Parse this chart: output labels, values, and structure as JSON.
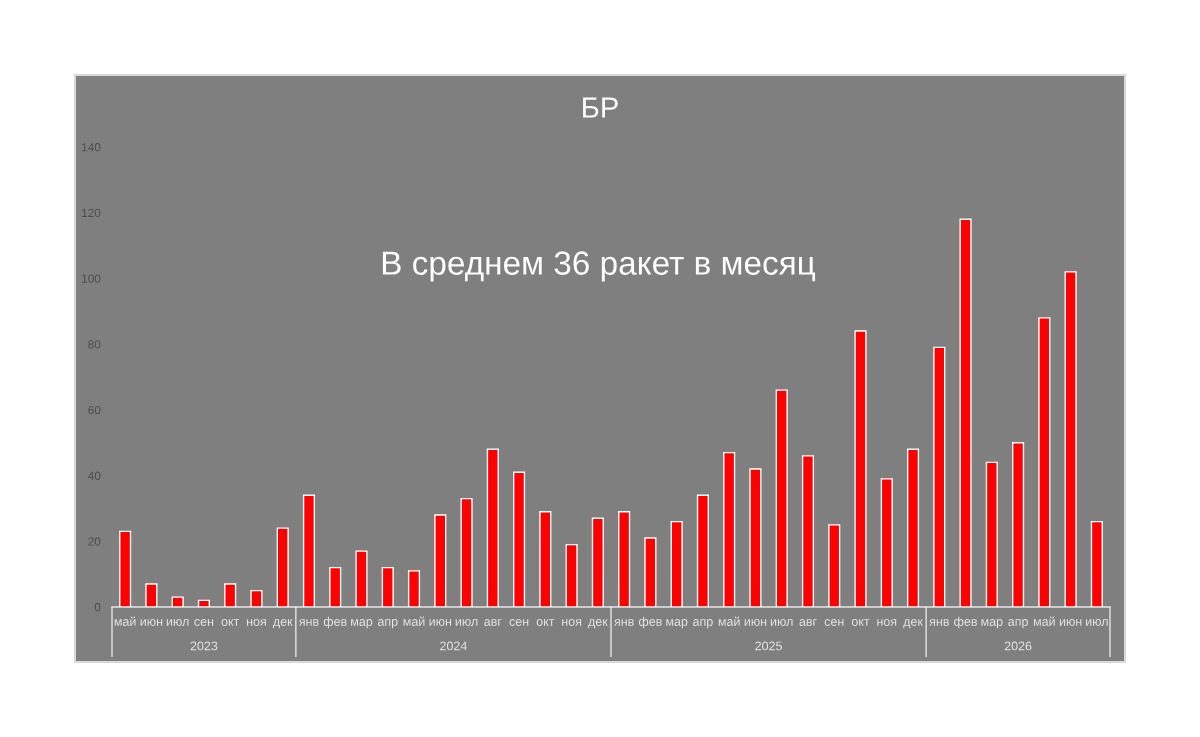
{
  "chart_data": [
    {
      "type": "bar",
      "categories": [
        "май",
        "июн",
        "июл",
        "сен",
        "окт",
        "ноя",
        "дек"
      ],
      "xlabel": "2023",
      "values": [
        23,
        7,
        3,
        2,
        7,
        5,
        24
      ],
      "color": "#ff0000",
      "ylim": [
        0,
        140
      ],
      "yticks": [
        0,
        20,
        40,
        60,
        80,
        100,
        120,
        140
      ]
    },
    {
      "type": "bar",
      "title": "БР",
      "annotations": [
        "В среднем 36 ракет в месяц"
      ],
      "categories": [
        "янв",
        "фев",
        "мар",
        "апр",
        "май",
        "июн",
        "июл",
        "авг",
        "сен",
        "окт",
        "ноя",
        "дек"
      ],
      "xlabel": "2024",
      "values": [
        34,
        12,
        17,
        12,
        11,
        28,
        33,
        48,
        41,
        29,
        19,
        27
      ],
      "color": "#ff0000",
      "ylim": [
        0,
        140
      ],
      "yticks": [
        0,
        20,
        40,
        60,
        80,
        100,
        120,
        140
      ],
      "tick_labels": "x"
    },
    {
      "type": "bar",
      "categories": [
        "янв",
        "фев",
        "мар",
        "апр",
        "май",
        "июн",
        "июл",
        "авг",
        "сен",
        "окт",
        "ноя",
        "дек"
      ],
      "xlabel": "2025",
      "values": [
        29,
        21,
        26,
        34,
        47,
        42,
        66,
        46,
        25,
        84,
        39,
        48
      ],
      "color": "#ff0000",
      "ylim": [
        0,
        140
      ],
      "yticks": [
        0,
        20,
        40,
        60,
        80,
        100,
        120,
        140
      ],
      "tick_labels": "x"
    },
    {
      "type": "bar",
      "categories": [
        "янв",
        "фев",
        "мар",
        "апр",
        "май",
        "июн",
        "июл"
      ],
      "xlabel": "2026",
      "values": [
        79,
        118,
        44,
        50,
        88,
        102,
        26
      ],
      "color": "#ff0000",
      "ylim": [
        0,
        140
      ],
      "yticks": [
        0,
        20,
        40,
        60,
        80,
        100,
        120,
        140
      ],
      "tick_labels": "x"
    }
  ]
}
